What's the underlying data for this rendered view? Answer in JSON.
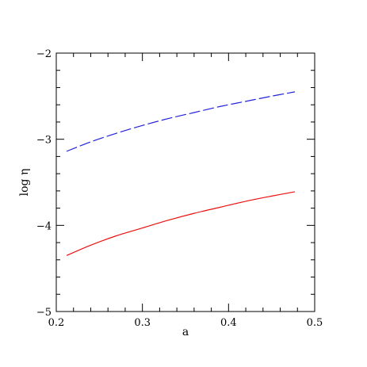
{
  "chart_data": {
    "type": "line",
    "xlabel": "a",
    "ylabel": "log η",
    "xlim": [
      0.2,
      0.5
    ],
    "ylim": [
      -5,
      -2
    ],
    "x_ticks": [
      0.2,
      0.3,
      0.4,
      0.5
    ],
    "x_tick_labels": [
      "0.2",
      "0.3",
      "0.4",
      "0.5"
    ],
    "y_ticks": [
      -5,
      -4,
      -3,
      -2
    ],
    "y_tick_labels": [
      "−5",
      "−4",
      "−3",
      "−2"
    ],
    "grid": false,
    "series": [
      {
        "color": "#2222dd",
        "style": "dashed",
        "x": [
          0.212,
          0.24,
          0.27,
          0.3,
          0.33,
          0.36,
          0.39,
          0.42,
          0.45,
          0.477
        ],
        "y": [
          -3.14,
          -3.03,
          -2.93,
          -2.84,
          -2.76,
          -2.69,
          -2.62,
          -2.56,
          -2.5,
          -2.45
        ]
      },
      {
        "color": "#ee1111",
        "style": "solid",
        "x": [
          0.212,
          0.24,
          0.27,
          0.3,
          0.33,
          0.36,
          0.39,
          0.42,
          0.45,
          0.477
        ],
        "y": [
          -4.35,
          -4.23,
          -4.12,
          -4.03,
          -3.94,
          -3.86,
          -3.79,
          -3.72,
          -3.66,
          -3.61
        ]
      }
    ]
  }
}
